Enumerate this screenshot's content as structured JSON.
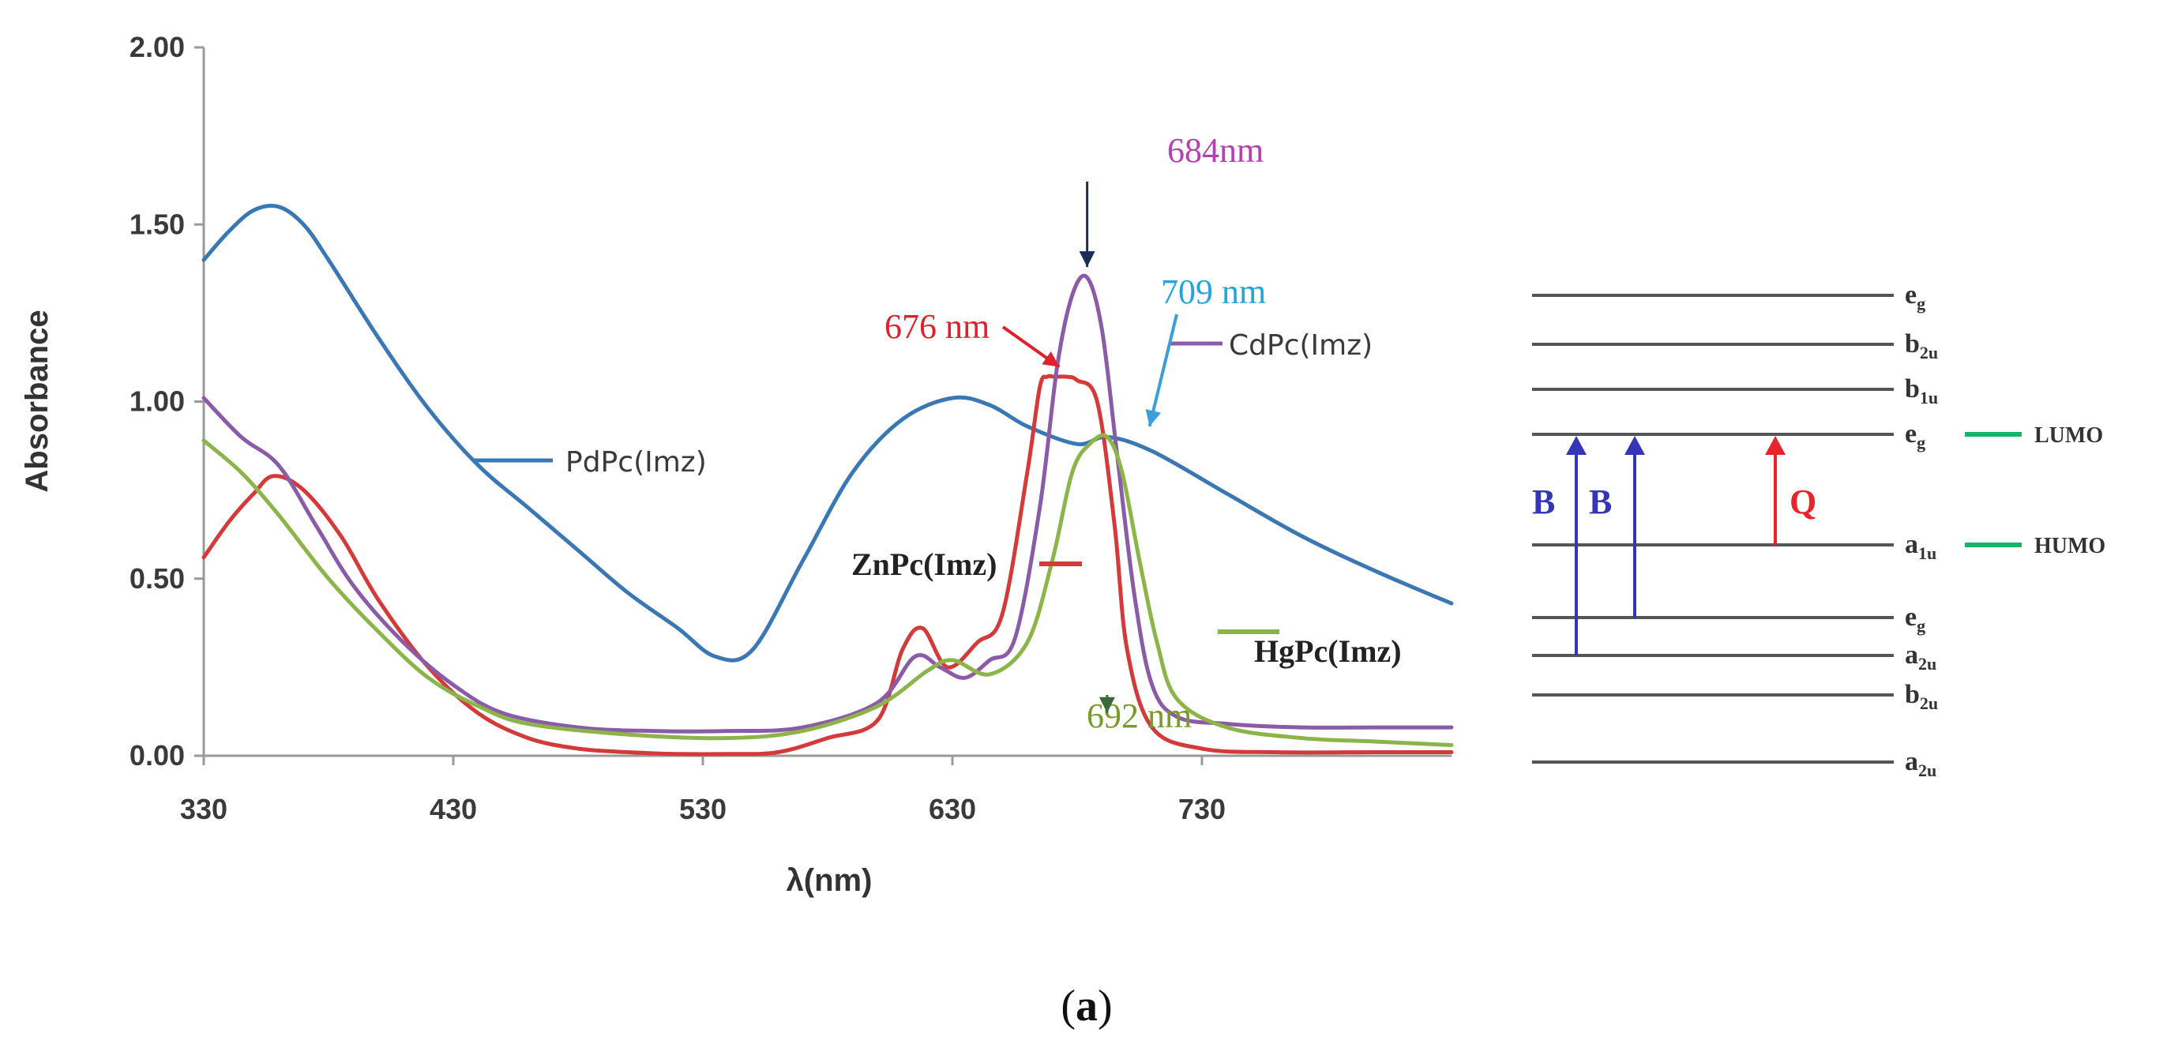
{
  "chart_data": {
    "type": "line",
    "xlabel": "λ(nm)",
    "ylabel": "Absorbance",
    "xlim": [
      330,
      830
    ],
    "ylim": [
      0,
      2
    ],
    "x_ticks": [
      "330",
      "430",
      "530",
      "630",
      "730"
    ],
    "y_ticks": [
      "0.00",
      "0.50",
      "1.00",
      "1.50",
      "2.00"
    ],
    "series": [
      {
        "name": "PdPc(Imz)",
        "color": "#3a78b5",
        "x": [
          330,
          340,
          350,
          360,
          370,
          380,
          400,
          420,
          440,
          460,
          480,
          500,
          520,
          535,
          550,
          570,
          590,
          610,
          630,
          645,
          660,
          680,
          692,
          710,
          740,
          770,
          800,
          830
        ],
        "y": [
          1.4,
          1.48,
          1.54,
          1.55,
          1.5,
          1.4,
          1.18,
          0.98,
          0.82,
          0.7,
          0.58,
          0.46,
          0.36,
          0.28,
          0.3,
          0.55,
          0.8,
          0.95,
          1.01,
          0.99,
          0.93,
          0.88,
          0.9,
          0.86,
          0.74,
          0.62,
          0.52,
          0.43
        ]
      },
      {
        "name": "ZnPc(Imz)",
        "color": "#d43a3a",
        "x": [
          330,
          340,
          350,
          358,
          370,
          385,
          400,
          420,
          440,
          460,
          480,
          500,
          520,
          540,
          560,
          580,
          600,
          610,
          618,
          628,
          640,
          650,
          660,
          665,
          668,
          671,
          676,
          680,
          688,
          695,
          700,
          710,
          730,
          760,
          800,
          830
        ],
        "y": [
          0.56,
          0.66,
          0.74,
          0.79,
          0.75,
          0.62,
          0.44,
          0.25,
          0.12,
          0.05,
          0.02,
          0.01,
          0.005,
          0.005,
          0.01,
          0.05,
          0.1,
          0.3,
          0.36,
          0.25,
          0.32,
          0.4,
          0.8,
          1.04,
          1.07,
          1.07,
          1.07,
          1.06,
          1.0,
          0.65,
          0.3,
          0.08,
          0.02,
          0.01,
          0.01,
          0.01
        ]
      },
      {
        "name": "CdPc(Imz)",
        "color": "#8a5ca8",
        "x": [
          330,
          345,
          360,
          375,
          390,
          410,
          430,
          450,
          480,
          510,
          540,
          570,
          600,
          615,
          625,
          635,
          645,
          655,
          665,
          672,
          678,
          684,
          690,
          696,
          703,
          710,
          720,
          740,
          770,
          800,
          830
        ],
        "y": [
          1.01,
          0.9,
          0.82,
          0.65,
          0.48,
          0.32,
          0.2,
          0.12,
          0.08,
          0.07,
          0.07,
          0.08,
          0.15,
          0.28,
          0.25,
          0.22,
          0.27,
          0.33,
          0.7,
          1.1,
          1.3,
          1.35,
          1.2,
          0.85,
          0.45,
          0.2,
          0.11,
          0.09,
          0.08,
          0.08,
          0.08
        ]
      },
      {
        "name": "HgPc(Imz)",
        "color": "#8cb449",
        "x": [
          330,
          345,
          360,
          380,
          400,
          420,
          440,
          460,
          500,
          540,
          570,
          600,
          620,
          630,
          645,
          660,
          670,
          678,
          685,
          692,
          698,
          705,
          712,
          720,
          740,
          770,
          800,
          830
        ],
        "y": [
          0.89,
          0.8,
          0.68,
          0.5,
          0.35,
          0.22,
          0.14,
          0.09,
          0.06,
          0.05,
          0.07,
          0.14,
          0.24,
          0.27,
          0.23,
          0.32,
          0.55,
          0.8,
          0.88,
          0.9,
          0.8,
          0.55,
          0.32,
          0.16,
          0.08,
          0.05,
          0.04,
          0.03
        ]
      }
    ],
    "annotations": [
      {
        "text": "684nm",
        "color": "#b540b0",
        "target_x": 684,
        "target_y": 1.38,
        "arrow_color": "#1c2d55"
      },
      {
        "text": "709 nm",
        "color": "#22a6d8",
        "target_x": 709,
        "target_y": 0.93,
        "arrow_color": "#3a9fd8"
      },
      {
        "text": "676 nm",
        "color": "#e0202a",
        "target_x": 676,
        "target_y": 1.12,
        "arrow_color": "#e0202a"
      },
      {
        "text": "692 nm",
        "color": "#7a9a2a",
        "target_x": 692,
        "target_y": 0.5,
        "arrow_color": "#3a6a3a"
      },
      {
        "text": "ZnPc(Imz)",
        "color": "#222222"
      },
      {
        "text": "HgPc(Imz)",
        "color": "#222222"
      }
    ]
  },
  "energy_diagram": {
    "levels": [
      {
        "main": "e",
        "sub": "g"
      },
      {
        "main": "b",
        "sub": "2u"
      },
      {
        "main": "b",
        "sub": "1u"
      },
      {
        "main": "e",
        "sub": "g"
      },
      {
        "main": "a",
        "sub": "1u"
      },
      {
        "main": "e",
        "sub": "g"
      },
      {
        "main": "a",
        "sub": "2u"
      },
      {
        "main": "b",
        "sub": "2u"
      },
      {
        "main": "a",
        "sub": "2u"
      }
    ],
    "lumo_label": "LUMO",
    "homo_label": "HUMO",
    "transitions": [
      {
        "label": "B",
        "color": "#3535b8"
      },
      {
        "label": "B",
        "color": "#3535b8"
      },
      {
        "label": "Q",
        "color": "#e8242a"
      }
    ],
    "marker_color": "#1ab36a"
  },
  "caption": {
    "open": "(",
    "letter": "a",
    "close": ")"
  }
}
